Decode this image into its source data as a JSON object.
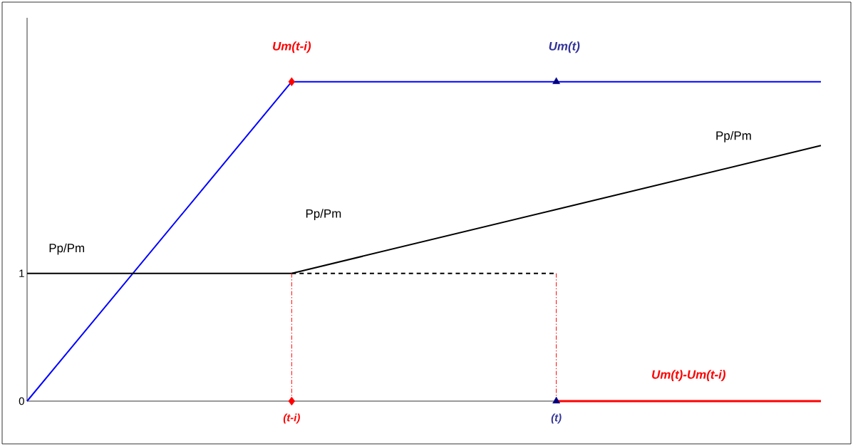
{
  "chart_data": {
    "type": "line",
    "categories": [
      null,
      "(t-i)",
      "(t)",
      null
    ],
    "ylim": [
      0,
      3
    ],
    "yticks": [
      0,
      1
    ],
    "series": [
      {
        "type": "scatter",
        "color": "#ff0000",
        "x": [
          "(t-i)",
          "(t-i)"
        ],
        "values": [
          2.5,
          0
        ],
        "marker": "diamond"
      },
      {
        "type": "scatter",
        "color": "#000080",
        "x": [
          "(t)",
          "(t)"
        ],
        "values": [
          2.5,
          0
        ],
        "marker": "triangle"
      },
      {
        "color": "#0000ff",
        "values": [
          0,
          2.5,
          2.5,
          2.5
        ]
      },
      {
        "color": "#000000",
        "values": [
          1,
          1,
          1.5,
          2
        ]
      },
      {
        "color": "#000000",
        "values": [
          null,
          1,
          1,
          null
        ],
        "line_style": "dashed"
      },
      {
        "color": "#ff0000",
        "values": [
          null,
          null,
          0,
          0
        ]
      },
      {
        "color": "#ff0000",
        "x": [
          "(t-i)",
          "(t-i)",
          "(t-i)",
          "(t)",
          "(t)"
        ],
        "values": [
          1,
          0,
          null,
          1,
          0
        ],
        "line_style": "dashdot"
      }
    ],
    "annotations": [
      "Um(t-i)",
      "Um(t)",
      "Pp/Pm",
      "Pp/Pm",
      "Pp/Pm",
      "Um(t)-Um(t-i)"
    ]
  }
}
